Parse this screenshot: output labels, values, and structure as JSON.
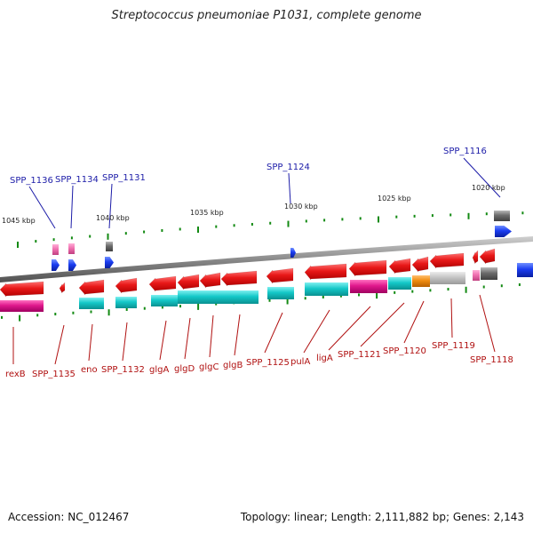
{
  "title": "Streptococcus pneumoniae P1031, complete genome",
  "footer": {
    "accession": "Accession: NC_012467",
    "summary": "Topology: linear; Length: 2,111,882 bp; Genes: 2,143"
  },
  "colors": {
    "label_top": "#1c1ca8",
    "label_bottom": "#b01010",
    "axis": "#808080",
    "tick": "#138a13",
    "red_gene": "#e01818",
    "cyan_gene": "#12c8c8",
    "magenta_gene": "#e01890",
    "blue_gene": "#1a3cf0",
    "grey_gene": "#707070",
    "orange_gene": "#f08c10",
    "light_grey_gene": "#c0c0c0",
    "pink_gene": "#f070b0"
  },
  "scale_labels": [
    "1045 kbp",
    "1040 kbp",
    "1035 kbp",
    "1030 kbp",
    "1025 kbp",
    "1020 kbp"
  ],
  "top_labels": [
    "SPP_1136",
    "SPP_1134",
    "SPP_1131",
    "SPP_1124",
    "SPP_1116"
  ],
  "bottom_labels": [
    "rexB",
    "SPP_1135",
    "eno",
    "SPP_1132",
    "glgA",
    "glgD",
    "glgC",
    "glgB",
    "SPP_1125",
    "pulA",
    "ligA",
    "SPP_1121",
    "SPP_1120",
    "SPP_1119",
    "SPP_1118"
  ]
}
